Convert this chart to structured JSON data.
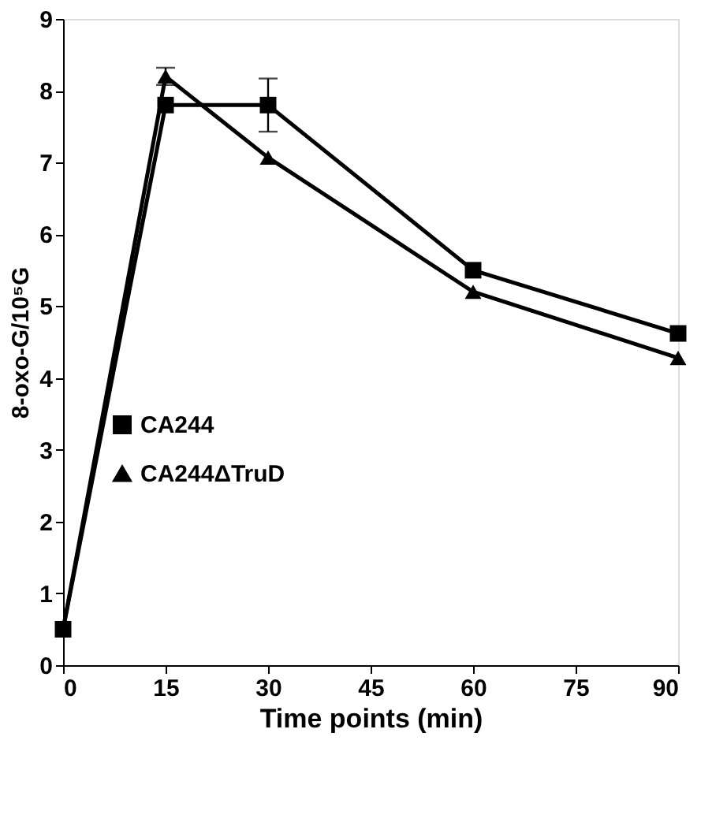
{
  "chart_data": {
    "type": "line",
    "xlabel": "Time points (min)",
    "ylabel": "8-oxo-G/10⁵G",
    "x": [
      0,
      15,
      30,
      60,
      90
    ],
    "series": [
      {
        "name": "CA244",
        "color": "#000000",
        "marker": "square",
        "values": [
          0.5,
          7.8,
          7.8,
          5.5,
          4.62
        ],
        "errors": [
          null,
          null,
          0.37,
          null,
          null
        ]
      },
      {
        "name": "CA244ΔTruD",
        "color": "#000000",
        "marker": "triangle",
        "values": [
          0.5,
          8.2,
          7.07,
          5.2,
          4.28
        ],
        "errors": [
          null,
          0.12,
          null,
          null,
          null
        ]
      }
    ],
    "xlim": [
      0,
      90
    ],
    "xticks": [
      0,
      15,
      30,
      45,
      60,
      75,
      90
    ],
    "ylim": [
      0,
      9
    ],
    "yticks": [
      0,
      1,
      2,
      3,
      4,
      5,
      6,
      7,
      8,
      9
    ],
    "grid": false,
    "legend": "left",
    "line_style": "solid"
  }
}
